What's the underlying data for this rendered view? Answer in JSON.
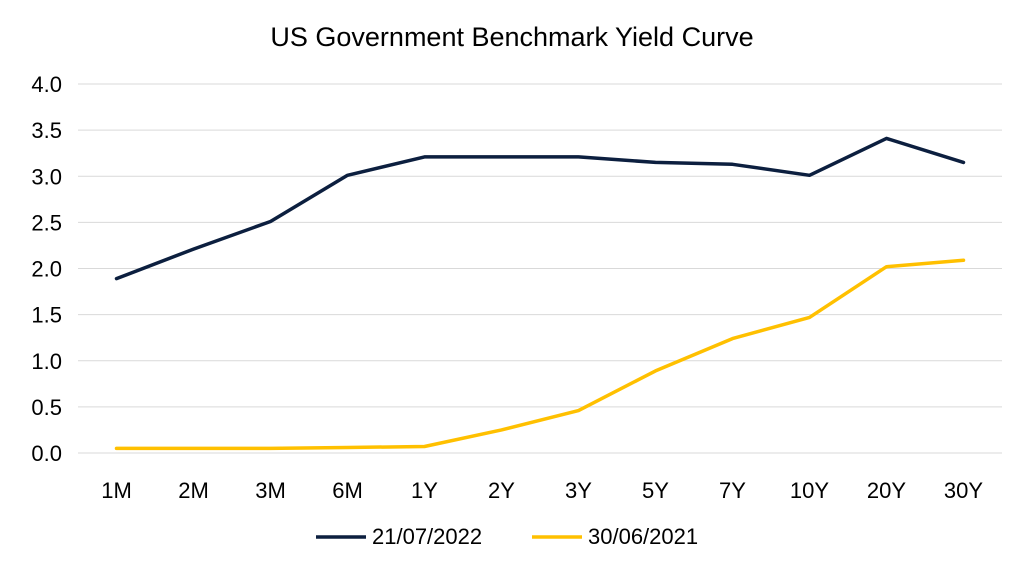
{
  "chart_data": {
    "type": "line",
    "title": "US Government Benchmark Yield Curve",
    "xlabel": "",
    "ylabel": "",
    "categories": [
      "1M",
      "2M",
      "3M",
      "6M",
      "1Y",
      "2Y",
      "3Y",
      "5Y",
      "7Y",
      "10Y",
      "20Y",
      "30Y"
    ],
    "ylim": [
      0.0,
      4.0
    ],
    "yticks": [
      "0.0",
      "0.5",
      "1.0",
      "1.5",
      "2.0",
      "2.5",
      "3.0",
      "3.5",
      "4.0"
    ],
    "grid": true,
    "legend_position": "bottom",
    "series": [
      {
        "name": "21/07/2022",
        "color": "#0c1f3f",
        "values": [
          1.89,
          2.21,
          2.51,
          3.01,
          3.21,
          3.21,
          3.21,
          3.15,
          3.13,
          3.01,
          3.41,
          3.15
        ]
      },
      {
        "name": "30/06/2021",
        "color": "#ffc000",
        "values": [
          0.05,
          0.05,
          0.05,
          0.06,
          0.07,
          0.25,
          0.46,
          0.89,
          1.24,
          1.47,
          2.02,
          2.09
        ]
      }
    ]
  }
}
